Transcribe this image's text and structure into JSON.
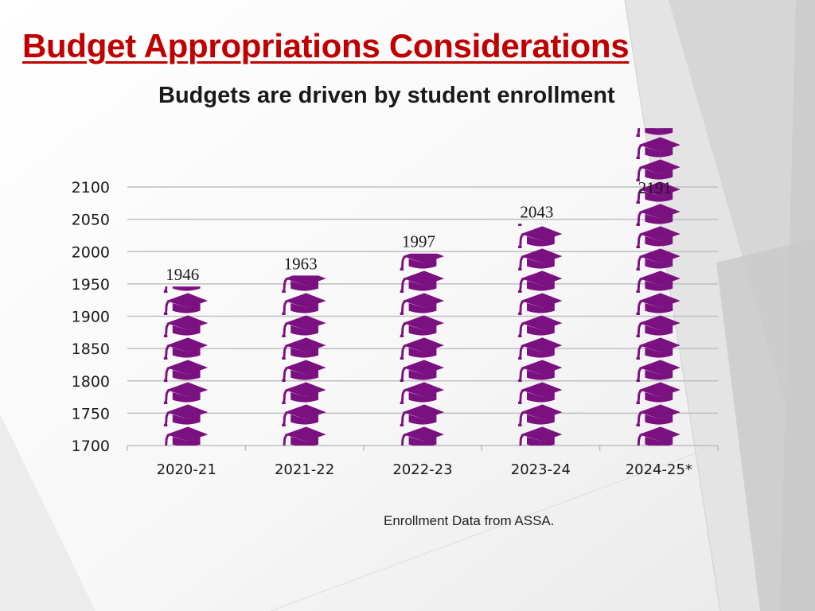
{
  "slide": {
    "title": "Budget Appropriations Considerations",
    "subtitle": "Budgets are driven by student enrollment",
    "source_note": "Enrollment Data from ASSA."
  },
  "colors": {
    "title": "#c00000",
    "bar_icon": "#7b1080",
    "gridline": "#bfbfbf",
    "axis_text": "#1a1a1a"
  },
  "bar_icon_name": "graduation-cap-icon",
  "chart_data": {
    "type": "bar",
    "categories": [
      "2020-21",
      "2021-22",
      "2022-23",
      "2023-24",
      "2024-25*"
    ],
    "values": [
      1946,
      1963,
      1997,
      2043,
      2191
    ],
    "data_labels": [
      "1946",
      "1963",
      "1997",
      "2043",
      "2191"
    ],
    "title": "",
    "xlabel": "",
    "ylabel": "",
    "ylim": [
      1700,
      2100
    ],
    "yticks": [
      1700,
      1750,
      1800,
      1850,
      1900,
      1950,
      2000,
      2050,
      2100
    ],
    "grid": true
  }
}
